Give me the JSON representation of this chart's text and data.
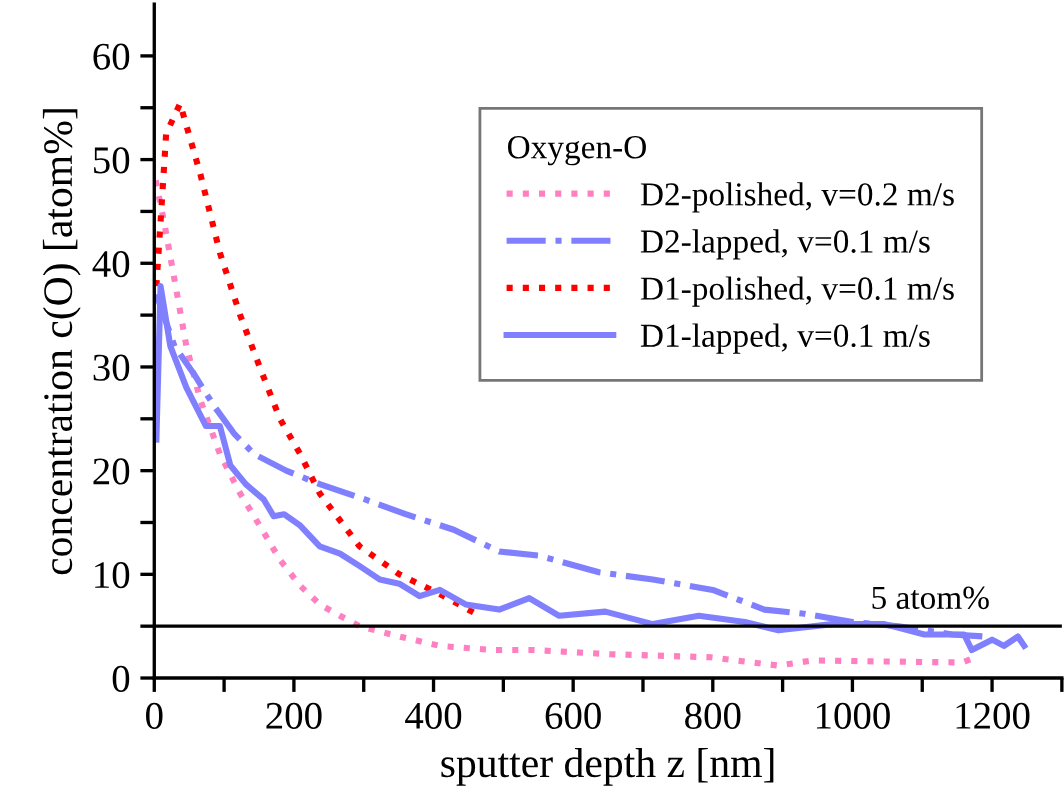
{
  "chart_data": {
    "type": "line",
    "xlabel": "sputter depth z [nm]",
    "ylabel": "concentration c(O) [atom%]",
    "legend_title": "Oxygen-O",
    "legend": "top right",
    "grid": false,
    "marker": "none",
    "xlim": [
      0,
      1300
    ],
    "ylim": [
      0,
      65
    ],
    "xticks": [
      0,
      {
        "value": 100,
        "label": null
      },
      200,
      {
        "value": 300,
        "label": null
      },
      400,
      {
        "value": 500,
        "label": null
      },
      600,
      {
        "value": 700,
        "label": null
      },
      800,
      {
        "value": 900,
        "label": null
      },
      1000,
      {
        "value": 1100,
        "label": null
      },
      1200,
      {
        "value": 1300,
        "label": null
      }
    ],
    "yticks": [
      0,
      {
        "value": 5,
        "label": null
      },
      10,
      {
        "value": 15,
        "label": null
      },
      20,
      {
        "value": 25,
        "label": null
      },
      30,
      {
        "value": 35,
        "label": null
      },
      40,
      {
        "value": 45,
        "label": null
      },
      50,
      {
        "value": 55,
        "label": null
      },
      60
    ],
    "ref_lines": [
      {
        "axis": "y",
        "value": 5,
        "label": "5 atom%",
        "color": "#000000",
        "line_style": "solid"
      }
    ],
    "series": [
      {
        "name": "D2-polished, v=0.2 m/s",
        "color": "#ff80c0",
        "line_style": "dotted",
        "x": [
          2,
          14,
          29,
          46,
          66,
          94,
          123,
          151,
          180,
          209,
          237,
          266,
          294,
          351,
          409,
          486,
          543,
          652,
          797,
          894,
          943,
          1040,
          1157,
          1177
        ],
        "values": [
          48,
          44,
          38.4,
          32,
          26.8,
          21.6,
          17.8,
          14.7,
          11.4,
          8.9,
          7.1,
          6,
          5,
          4,
          3.1,
          2.7,
          2.7,
          2.3,
          2,
          1.2,
          1.7,
          1.6,
          1.5,
          2
        ]
      },
      {
        "name": "D2-lapped, v=0.1 m/s",
        "color": "#8080ff",
        "line_style": "dashdot",
        "x": [
          3,
          29,
          57,
          86,
          114,
          143,
          189,
          237,
          303,
          360,
          429,
          494,
          551,
          637,
          714,
          800,
          874,
          931,
          1000,
          1066,
          1143,
          1190
        ],
        "values": [
          37,
          32,
          29.3,
          26.2,
          23.6,
          21.6,
          20,
          18.7,
          17.2,
          15.8,
          14.3,
          12.2,
          11.8,
          10.2,
          9.5,
          8.5,
          6.6,
          6.2,
          5.4,
          5,
          4.2,
          4
        ]
      },
      {
        "name": "D1-polished, v=0.1 m/s",
        "color": "#ff0000",
        "line_style": "dotted",
        "x": [
          3,
          9,
          17,
          37,
          66,
          94,
          123,
          151,
          180,
          209,
          237,
          294,
          351,
          409,
          466
        ],
        "values": [
          37.8,
          44,
          52.5,
          55.4,
          48.6,
          41,
          35,
          30,
          25,
          21.6,
          17.8,
          12.7,
          10,
          8.1,
          6
        ]
      },
      {
        "name": "D1-lapped, v=0.1 m/s",
        "color": "#8080ff",
        "line_style": "solid",
        "x": [
          3,
          9,
          23,
          46,
          74,
          94,
          109,
          131,
          157,
          171,
          186,
          209,
          237,
          266,
          294,
          323,
          351,
          380,
          409,
          446,
          494,
          537,
          580,
          646,
          714,
          780,
          846,
          894,
          971,
          1046,
          1103,
          1160,
          1171,
          1200,
          1217,
          1237,
          1246
        ],
        "values": [
          23,
          37.8,
          32,
          28,
          24.3,
          24.3,
          20.5,
          18.7,
          17.2,
          15.6,
          15.8,
          14.7,
          12.7,
          12,
          10.8,
          9.5,
          9.1,
          7.9,
          8.5,
          7.1,
          6.6,
          7.7,
          6,
          6.4,
          5.2,
          6,
          5.4,
          4.6,
          5.2,
          5.2,
          4.2,
          4.2,
          2.7,
          3.7,
          3.1,
          4,
          3.1
        ]
      }
    ]
  }
}
